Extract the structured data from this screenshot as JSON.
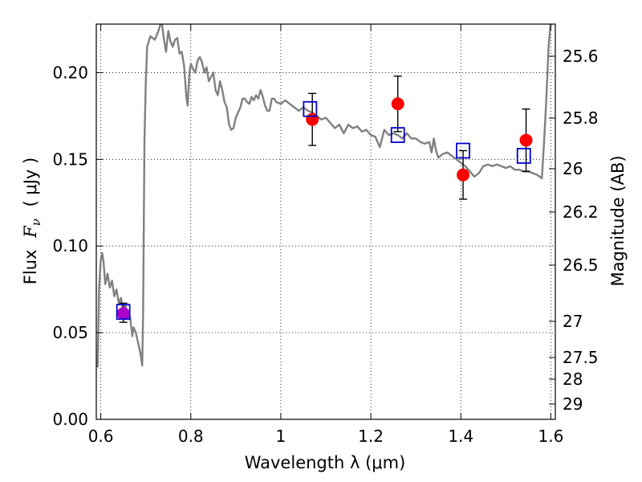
{
  "chart_data": {
    "type": "scatter",
    "xlabel": "Wavelength  λ (μm)",
    "ylabel": "Flux  F_ν  ( μJy )",
    "ylabel_parts": {
      "prefix": "Flux",
      "symbol": "F",
      "subscript": "ν",
      "unit": "( μJy )"
    },
    "y2label": "Magnitude (AB)",
    "xlim": [
      0.59,
      1.61
    ],
    "ylim": [
      0.0,
      0.228
    ],
    "grid": true,
    "x_ticks": [
      {
        "value": 0.6,
        "label": "0.6"
      },
      {
        "value": 0.8,
        "label": "0.8"
      },
      {
        "value": 1.0,
        "label": "1"
      },
      {
        "value": 1.2,
        "label": "1.2"
      },
      {
        "value": 1.4,
        "label": "1.4"
      },
      {
        "value": 1.6,
        "label": "1.6"
      }
    ],
    "y_ticks": [
      {
        "value": 0.0,
        "label": "0.00"
      },
      {
        "value": 0.05,
        "label": "0.05"
      },
      {
        "value": 0.1,
        "label": "0.10"
      },
      {
        "value": 0.15,
        "label": "0.15"
      },
      {
        "value": 0.2,
        "label": "0.20"
      }
    ],
    "y2_ticks": [
      {
        "label": "25.6"
      },
      {
        "label": "25.8"
      },
      {
        "label": "26"
      },
      {
        "label": "26.2"
      },
      {
        "label": "26.5"
      },
      {
        "label": "27"
      },
      {
        "label": "27.5"
      },
      {
        "label": "28"
      },
      {
        "label": "29"
      }
    ],
    "model_spectrum": {
      "color": "#808080",
      "points": [
        [
          0.593,
          0.03
        ],
        [
          0.596,
          0.075
        ],
        [
          0.6,
          0.092
        ],
        [
          0.603,
          0.096
        ],
        [
          0.606,
          0.091
        ],
        [
          0.61,
          0.078
        ],
        [
          0.615,
          0.084
        ],
        [
          0.62,
          0.076
        ],
        [
          0.625,
          0.08
        ],
        [
          0.63,
          0.071
        ],
        [
          0.635,
          0.075
        ],
        [
          0.64,
          0.067
        ],
        [
          0.645,
          0.07
        ],
        [
          0.65,
          0.062
        ],
        [
          0.655,
          0.066
        ],
        [
          0.66,
          0.058
        ],
        [
          0.665,
          0.059
        ],
        [
          0.67,
          0.048
        ],
        [
          0.673,
          0.053
        ],
        [
          0.678,
          0.05
        ],
        [
          0.683,
          0.044
        ],
        [
          0.688,
          0.038
        ],
        [
          0.692,
          0.031
        ],
        [
          0.694,
          0.06
        ],
        [
          0.697,
          0.16
        ],
        [
          0.7,
          0.195
        ],
        [
          0.703,
          0.215
        ],
        [
          0.71,
          0.221
        ],
        [
          0.72,
          0.219
        ],
        [
          0.728,
          0.224
        ],
        [
          0.735,
          0.23
        ],
        [
          0.74,
          0.22
        ],
        [
          0.745,
          0.212
        ],
        [
          0.75,
          0.224
        ],
        [
          0.755,
          0.218
        ],
        [
          0.76,
          0.215
        ],
        [
          0.765,
          0.219
        ],
        [
          0.77,
          0.22
        ],
        [
          0.775,
          0.211
        ],
        [
          0.78,
          0.212
        ],
        [
          0.785,
          0.204
        ],
        [
          0.79,
          0.186
        ],
        [
          0.793,
          0.181
        ],
        [
          0.797,
          0.2
        ],
        [
          0.8,
          0.205
        ],
        [
          0.805,
          0.202
        ],
        [
          0.81,
          0.2
        ],
        [
          0.815,
          0.207
        ],
        [
          0.82,
          0.209
        ],
        [
          0.825,
          0.206
        ],
        [
          0.83,
          0.2
        ],
        [
          0.835,
          0.203
        ],
        [
          0.84,
          0.195
        ],
        [
          0.85,
          0.2
        ],
        [
          0.855,
          0.19
        ],
        [
          0.86,
          0.187
        ],
        [
          0.865,
          0.195
        ],
        [
          0.87,
          0.19
        ],
        [
          0.875,
          0.183
        ],
        [
          0.88,
          0.18
        ],
        [
          0.885,
          0.17
        ],
        [
          0.89,
          0.167
        ],
        [
          0.895,
          0.168
        ],
        [
          0.9,
          0.174
        ],
        [
          0.91,
          0.18
        ],
        [
          0.915,
          0.185
        ],
        [
          0.92,
          0.185
        ],
        [
          0.925,
          0.183
        ],
        [
          0.93,
          0.182
        ],
        [
          0.935,
          0.186
        ],
        [
          0.94,
          0.184
        ],
        [
          0.945,
          0.187
        ],
        [
          0.95,
          0.185
        ],
        [
          0.955,
          0.19
        ],
        [
          0.96,
          0.186
        ],
        [
          0.965,
          0.181
        ],
        [
          0.97,
          0.178
        ],
        [
          0.975,
          0.178
        ],
        [
          0.98,
          0.185
        ],
        [
          0.985,
          0.185
        ],
        [
          0.99,
          0.183
        ],
        [
          1.0,
          0.182
        ],
        [
          1.01,
          0.184
        ],
        [
          1.02,
          0.182
        ],
        [
          1.03,
          0.18
        ],
        [
          1.04,
          0.178
        ],
        [
          1.05,
          0.18
        ],
        [
          1.06,
          0.178
        ],
        [
          1.07,
          0.177
        ],
        [
          1.08,
          0.175
        ],
        [
          1.09,
          0.173
        ],
        [
          1.1,
          0.174
        ],
        [
          1.11,
          0.171
        ],
        [
          1.12,
          0.168
        ],
        [
          1.13,
          0.17
        ],
        [
          1.14,
          0.165
        ],
        [
          1.15,
          0.17
        ],
        [
          1.16,
          0.168
        ],
        [
          1.17,
          0.169
        ],
        [
          1.18,
          0.166
        ],
        [
          1.19,
          0.167
        ],
        [
          1.2,
          0.164
        ],
        [
          1.21,
          0.163
        ],
        [
          1.22,
          0.157
        ],
        [
          1.23,
          0.167
        ],
        [
          1.24,
          0.164
        ],
        [
          1.25,
          0.165
        ],
        [
          1.26,
          0.164
        ],
        [
          1.27,
          0.162
        ],
        [
          1.28,
          0.165
        ],
        [
          1.29,
          0.162
        ],
        [
          1.3,
          0.162
        ],
        [
          1.31,
          0.16
        ],
        [
          1.32,
          0.159
        ],
        [
          1.33,
          0.16
        ],
        [
          1.335,
          0.154
        ],
        [
          1.34,
          0.162
        ],
        [
          1.345,
          0.155
        ],
        [
          1.35,
          0.151
        ],
        [
          1.36,
          0.153
        ],
        [
          1.37,
          0.154
        ],
        [
          1.38,
          0.152
        ],
        [
          1.39,
          0.15
        ],
        [
          1.4,
          0.148
        ],
        [
          1.41,
          0.146
        ],
        [
          1.42,
          0.143
        ],
        [
          1.43,
          0.14
        ],
        [
          1.44,
          0.142
        ],
        [
          1.45,
          0.146
        ],
        [
          1.46,
          0.147
        ],
        [
          1.47,
          0.146
        ],
        [
          1.48,
          0.147
        ],
        [
          1.49,
          0.146
        ],
        [
          1.5,
          0.145
        ],
        [
          1.51,
          0.146
        ],
        [
          1.52,
          0.144
        ],
        [
          1.53,
          0.144
        ],
        [
          1.54,
          0.143
        ],
        [
          1.55,
          0.143
        ],
        [
          1.56,
          0.142
        ],
        [
          1.57,
          0.141
        ],
        [
          1.58,
          0.139
        ],
        [
          1.585,
          0.16
        ],
        [
          1.59,
          0.185
        ],
        [
          1.595,
          0.215
        ],
        [
          1.6,
          0.23
        ]
      ]
    },
    "series": [
      {
        "marker": "circle-filled",
        "color": "#ff0000",
        "points": [
          {
            "x": 1.07,
            "y": 0.173,
            "yerr_low": 0.158,
            "yerr_high": 0.188
          },
          {
            "x": 1.26,
            "y": 0.182,
            "yerr_low": 0.166,
            "yerr_high": 0.198
          },
          {
            "x": 1.405,
            "y": 0.141,
            "yerr_low": 0.127,
            "yerr_high": 0.155
          },
          {
            "x": 1.545,
            "y": 0.161,
            "yerr_low": 0.143,
            "yerr_high": 0.179
          }
        ]
      },
      {
        "marker": "circle-filled",
        "color": "#aa00cc",
        "points": [
          {
            "x": 0.65,
            "y": 0.061,
            "yerr_low": 0.056,
            "yerr_high": 0.067
          }
        ]
      },
      {
        "marker": "square-open",
        "color": "#0000cc",
        "points": [
          {
            "x": 0.65,
            "y": 0.062
          },
          {
            "x": 1.065,
            "y": 0.179
          },
          {
            "x": 1.26,
            "y": 0.164
          },
          {
            "x": 1.405,
            "y": 0.155
          },
          {
            "x": 1.54,
            "y": 0.152
          }
        ]
      }
    ]
  }
}
